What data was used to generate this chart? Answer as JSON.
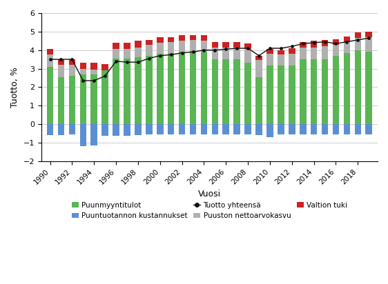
{
  "years": [
    1990,
    1991,
    1992,
    1993,
    1994,
    1995,
    1996,
    1997,
    1998,
    1999,
    2000,
    2001,
    2002,
    2003,
    2004,
    2005,
    2006,
    2007,
    2008,
    2009,
    2010,
    2011,
    2012,
    2013,
    2014,
    2015,
    2016,
    2017,
    2018,
    2019
  ],
  "puunmyyntitulot": [
    3.1,
    2.55,
    2.6,
    2.7,
    2.7,
    2.9,
    3.55,
    3.55,
    3.6,
    3.7,
    3.8,
    3.85,
    3.9,
    3.95,
    3.9,
    3.5,
    3.5,
    3.5,
    3.3,
    2.55,
    3.15,
    3.15,
    3.15,
    3.5,
    3.5,
    3.5,
    3.7,
    3.85,
    4.0,
    3.9
  ],
  "nettoarvokasvu": [
    0.65,
    0.65,
    0.6,
    0.3,
    0.25,
    0.0,
    0.5,
    0.5,
    0.55,
    0.6,
    0.6,
    0.6,
    0.6,
    0.6,
    0.6,
    0.65,
    0.65,
    0.65,
    0.75,
    0.9,
    0.65,
    0.6,
    0.65,
    0.65,
    0.65,
    0.7,
    0.6,
    0.6,
    0.65,
    0.8
  ],
  "valtion_tuki": [
    0.3,
    0.3,
    0.3,
    0.3,
    0.35,
    0.35,
    0.35,
    0.35,
    0.35,
    0.25,
    0.3,
    0.25,
    0.3,
    0.25,
    0.3,
    0.3,
    0.3,
    0.3,
    0.3,
    0.25,
    0.25,
    0.25,
    0.3,
    0.3,
    0.35,
    0.35,
    0.3,
    0.3,
    0.3,
    0.3
  ],
  "kustannukset": [
    -0.6,
    -0.6,
    -0.55,
    -1.2,
    -1.15,
    -0.65,
    -0.65,
    -0.65,
    -0.6,
    -0.55,
    -0.55,
    -0.55,
    -0.55,
    -0.55,
    -0.55,
    -0.55,
    -0.55,
    -0.55,
    -0.55,
    -0.6,
    -0.7,
    -0.55,
    -0.55,
    -0.55,
    -0.55,
    -0.55,
    -0.55,
    -0.55,
    -0.55,
    -0.55
  ],
  "tuotto_yht": [
    3.5,
    3.5,
    3.5,
    2.35,
    2.35,
    2.6,
    3.4,
    3.35,
    3.35,
    3.55,
    3.7,
    3.75,
    3.85,
    3.9,
    4.0,
    4.0,
    4.05,
    4.1,
    4.1,
    3.7,
    4.1,
    4.1,
    4.2,
    4.35,
    4.4,
    4.45,
    4.35,
    4.45,
    4.55,
    4.65
  ],
  "color_green": "#5ab554",
  "color_gray": "#b0b0b0",
  "color_red": "#cc2222",
  "color_blue": "#5b8fd4",
  "color_line": "#111111",
  "ylabel": "Tuotto, %",
  "xlabel": "Vuosi",
  "ylim": [
    -2.0,
    6.0
  ],
  "yticks": [
    -2,
    -1,
    0,
    1,
    2,
    3,
    4,
    5,
    6
  ],
  "legend_green": "Puunmyyntitulot",
  "legend_blue": "Puuntuotannon kustannukset",
  "legend_line": "Tuotto yhteensä",
  "legend_gray": "Puuston nettoarvokasvu",
  "legend_red": "Valtion tuki"
}
